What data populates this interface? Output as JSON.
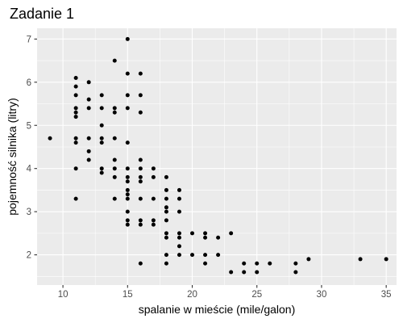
{
  "chart_data": {
    "type": "scatter",
    "title": "Zadanie 1",
    "xlabel": "spalanie w mieście (mile/galon)",
    "ylabel": "pojemność silnika (litry)",
    "xlim": [
      8.0,
      35.8
    ],
    "ylim": [
      1.3,
      7.25
    ],
    "xticks": [
      10,
      15,
      20,
      25,
      30,
      35
    ],
    "xtick_labels": [
      "10",
      "15",
      "20",
      "25",
      "30",
      "35"
    ],
    "yticks": [
      2,
      3,
      4,
      5,
      6,
      7
    ],
    "ytick_labels": [
      "2",
      "3",
      "4",
      "5",
      "6",
      "7"
    ],
    "grid": true,
    "background": "#ebebeb",
    "grid_major_color": "#ffffff",
    "point_color": "#000000",
    "points": [
      [
        9,
        4.7
      ],
      [
        11,
        6.1
      ],
      [
        11,
        5.9
      ],
      [
        11,
        5.7
      ],
      [
        11,
        5.4
      ],
      [
        11,
        5.3
      ],
      [
        11,
        5.2
      ],
      [
        11,
        4.7
      ],
      [
        11,
        4.6
      ],
      [
        11,
        4.0
      ],
      [
        11,
        3.3
      ],
      [
        12,
        6.0
      ],
      [
        12,
        5.6
      ],
      [
        12,
        5.4
      ],
      [
        12,
        4.7
      ],
      [
        12,
        4.4
      ],
      [
        12,
        4.2
      ],
      [
        13,
        5.7
      ],
      [
        13,
        5.4
      ],
      [
        13,
        5.0
      ],
      [
        13,
        4.7
      ],
      [
        13,
        4.6
      ],
      [
        13,
        4.0
      ],
      [
        13,
        3.9
      ],
      [
        14,
        6.5
      ],
      [
        14,
        5.4
      ],
      [
        14,
        5.3
      ],
      [
        14,
        4.7
      ],
      [
        14,
        4.2
      ],
      [
        14,
        4.0
      ],
      [
        14,
        3.8
      ],
      [
        14,
        3.3
      ],
      [
        15,
        7.0
      ],
      [
        15,
        6.2
      ],
      [
        15,
        5.7
      ],
      [
        15,
        5.4
      ],
      [
        15,
        4.6
      ],
      [
        15,
        4.0
      ],
      [
        15,
        3.8
      ],
      [
        15,
        3.7
      ],
      [
        15,
        3.5
      ],
      [
        15,
        3.4
      ],
      [
        15,
        3.3
      ],
      [
        15,
        3.0
      ],
      [
        15,
        2.8
      ],
      [
        15,
        2.7
      ],
      [
        16,
        6.2
      ],
      [
        16,
        5.7
      ],
      [
        16,
        5.3
      ],
      [
        16,
        4.2
      ],
      [
        16,
        4.0
      ],
      [
        16,
        3.8
      ],
      [
        16,
        3.7
      ],
      [
        16,
        3.3
      ],
      [
        16,
        2.8
      ],
      [
        16,
        2.7
      ],
      [
        16,
        1.8
      ],
      [
        17,
        4.0
      ],
      [
        17,
        3.8
      ],
      [
        17,
        3.3
      ],
      [
        17,
        2.8
      ],
      [
        17,
        2.7
      ],
      [
        18,
        3.8
      ],
      [
        18,
        3.5
      ],
      [
        18,
        3.3
      ],
      [
        18,
        3.1
      ],
      [
        18,
        3.0
      ],
      [
        18,
        2.8
      ],
      [
        18,
        2.5
      ],
      [
        18,
        2.4
      ],
      [
        18,
        2.0
      ],
      [
        18,
        1.8
      ],
      [
        19,
        3.5
      ],
      [
        19,
        3.3
      ],
      [
        19,
        3.0
      ],
      [
        19,
        2.5
      ],
      [
        19,
        2.4
      ],
      [
        19,
        2.2
      ],
      [
        19,
        2.0
      ],
      [
        20,
        2.5
      ],
      [
        20,
        2.0
      ],
      [
        21,
        2.5
      ],
      [
        21,
        2.4
      ],
      [
        21,
        2.0
      ],
      [
        21,
        1.8
      ],
      [
        22,
        2.4
      ],
      [
        22,
        2.0
      ],
      [
        23,
        2.5
      ],
      [
        23,
        1.6
      ],
      [
        24,
        1.8
      ],
      [
        24,
        1.6
      ],
      [
        25,
        1.8
      ],
      [
        25,
        1.6
      ],
      [
        26,
        1.8
      ],
      [
        28,
        1.8
      ],
      [
        28,
        1.6
      ],
      [
        29,
        1.9
      ],
      [
        33,
        1.9
      ],
      [
        35,
        1.9
      ]
    ]
  }
}
